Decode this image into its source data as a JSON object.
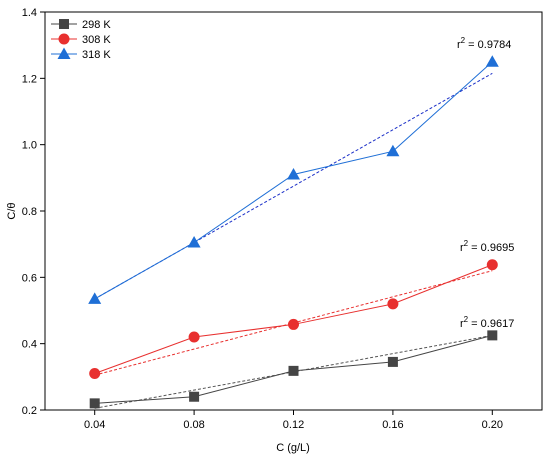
{
  "chart_data": {
    "type": "line",
    "xlabel": "C (g/L)",
    "ylabel": "C/θ",
    "xlim": [
      0.02,
      0.22
    ],
    "ylim": [
      0.2,
      1.4
    ],
    "x_ticks": [
      "0.04",
      "0.08",
      "0.12",
      "0.16",
      "0.20"
    ],
    "y_ticks": [
      "0.2",
      "0.4",
      "0.6",
      "0.8",
      "1.0",
      "1.2",
      "1.4"
    ],
    "x": [
      0.04,
      0.08,
      0.12,
      0.16,
      0.2
    ],
    "legend_position": "top-left",
    "grid": false,
    "series": [
      {
        "name": "298 K",
        "marker": "square",
        "color": "#454545",
        "fit_color": "#555555",
        "values": [
          0.22,
          0.24,
          0.318,
          0.345,
          0.425
        ],
        "fit": [
          0.205,
          0.425
        ],
        "r2_label": "r",
        "r2_value": " = 0.9617"
      },
      {
        "name": "308 K",
        "marker": "circle",
        "color": "#e8302f",
        "fit_color": "#e8302f",
        "values": [
          0.31,
          0.42,
          0.458,
          0.52,
          0.638
        ],
        "fit": [
          0.305,
          0.62
        ],
        "r2_label": "r",
        "r2_value": " = 0.9695"
      },
      {
        "name": "318 K",
        "marker": "triangle",
        "color": "#1f6fd6",
        "fit_color": "#1b2fc8",
        "values": [
          0.535,
          0.705,
          0.91,
          0.98,
          1.25
        ],
        "fit": [
          0.535,
          1.215
        ],
        "r2_label": "r",
        "r2_value": " = 0.9784"
      }
    ]
  }
}
